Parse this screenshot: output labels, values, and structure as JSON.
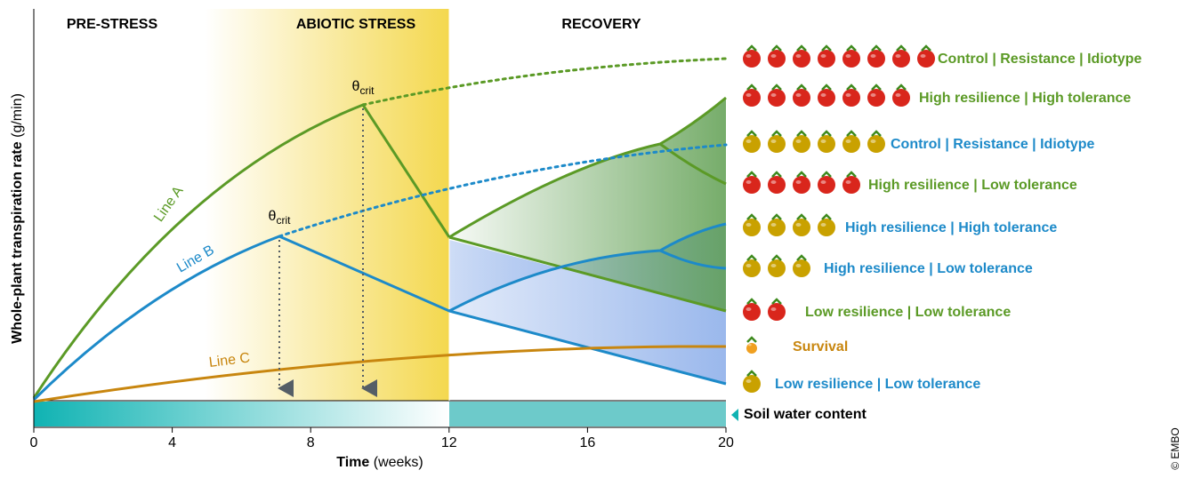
{
  "phases": [
    "PRE-STRESS",
    "ABIOTIC STRESS",
    "RECOVERY"
  ],
  "x_axis": {
    "label": "Time",
    "unit": "(weeks)",
    "lim": [
      0,
      20
    ],
    "ticks": [
      0,
      4,
      8,
      12,
      16,
      20
    ]
  },
  "y_axis": {
    "label": "Whole-plant transpiration rate",
    "unit": "(g/min)"
  },
  "lines": [
    {
      "name": "Line A",
      "color": "#5b9a26"
    },
    {
      "name": "Line B",
      "color": "#1d8ac9"
    },
    {
      "name": "Line C",
      "color": "#c8860f"
    }
  ],
  "theta_labels": [
    {
      "symbol": "θ",
      "subscript": "crit"
    },
    {
      "symbol": "θ",
      "subscript": "crit"
    }
  ],
  "soil_water": "Soil water content",
  "outcomes": [
    {
      "label": "Control | Resistance | Idiotype",
      "color": "#5b9a26",
      "fruits": 8,
      "fruit_color": "#d9261c"
    },
    {
      "label": "High resilience | High tolerance",
      "color": "#5b9a26",
      "fruits": 7,
      "fruit_color": "#d9261c"
    },
    {
      "label": "Control | Resistance | Idiotype",
      "color": "#1d8ac9",
      "fruits": 6,
      "fruit_color": "#c9a100"
    },
    {
      "label": "High resilience | Low tolerance",
      "color": "#5b9a26",
      "fruits": 5,
      "fruit_color": "#d9261c"
    },
    {
      "label": "High resilience | High tolerance",
      "color": "#1d8ac9",
      "fruits": 4,
      "fruit_color": "#c9a100"
    },
    {
      "label": "High resilience | Low tolerance",
      "color": "#1d8ac9",
      "fruits": 3,
      "fruit_color": "#c9a100"
    },
    {
      "label": "Low resilience | Low tolerance",
      "color": "#5b9a26",
      "fruits": 2,
      "fruit_color": "#d9261c"
    },
    {
      "label": "Survival",
      "color": "#c8860f",
      "fruits": 1,
      "fruit_color": "#f0a020"
    },
    {
      "label": "Low resilience | Low tolerance",
      "color": "#1d8ac9",
      "fruits": 1,
      "fruit_color": "#c9a100"
    }
  ],
  "credit": "© EMBO"
}
